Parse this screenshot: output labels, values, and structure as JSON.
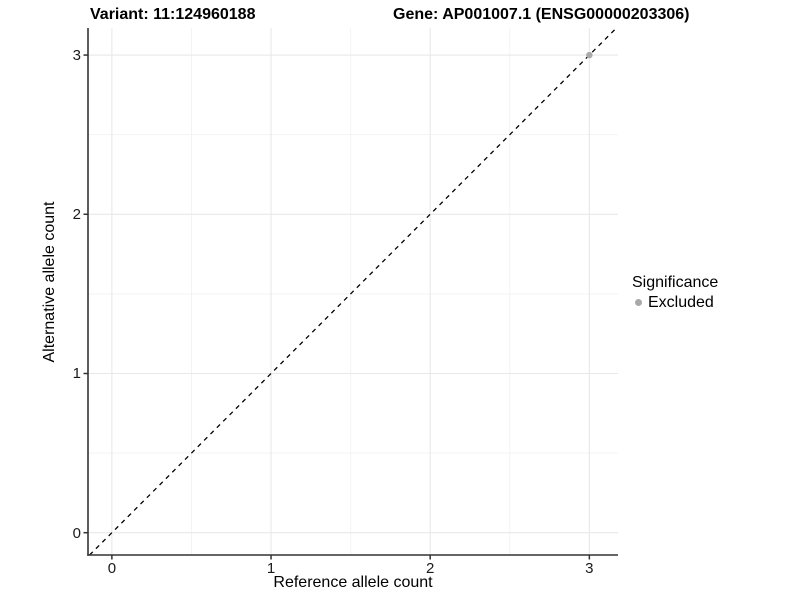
{
  "page": {
    "background": "#ffffff"
  },
  "chart_data": {
    "type": "scatter",
    "title_left": "Variant: 11:124960188",
    "title_right": "Gene: AP001007.1 (ENSG00000203306)",
    "xlabel": "Reference allele count",
    "ylabel": "Alternative allele count",
    "xlim": [
      -0.15,
      3.18
    ],
    "ylim": [
      -0.14,
      3.17
    ],
    "xticks": [
      0,
      1,
      2,
      3
    ],
    "yticks": [
      0,
      1,
      2,
      3
    ],
    "minor_xticks": [
      0.5,
      1.5,
      2.5
    ],
    "minor_yticks": [
      0.5,
      1.5,
      2.5
    ],
    "grid": "major+minor",
    "identity_line": {
      "slope": 1,
      "intercept": 0,
      "style": "dashed",
      "color": "#000000"
    },
    "series": [
      {
        "name": "Excluded",
        "color": "#a9a9a9",
        "points": [
          {
            "x": 3,
            "y": 3
          }
        ]
      }
    ],
    "legend": {
      "title": "Significance",
      "position": "right",
      "items": [
        {
          "label": "Excluded",
          "color": "#a9a9a9"
        }
      ]
    },
    "colors": {
      "grid_major": "#e8e8e8",
      "grid_minor": "#f2f2f2",
      "axis_line": "#333333",
      "tick": "#333333",
      "text": "#000000"
    }
  }
}
